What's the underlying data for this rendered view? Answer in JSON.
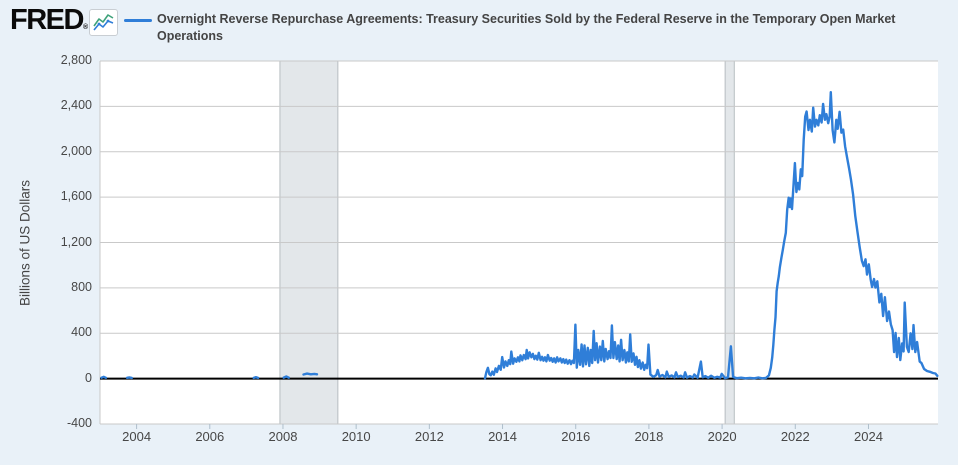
{
  "header": {
    "logo_text": "FRED",
    "registered_mark": "®",
    "series_title": "Overnight Reverse Repurchase Agreements: Treasury Securities Sold by the Federal Reserve in the Temporary Open Market Operations"
  },
  "colors": {
    "line": "#2f7ed8",
    "background": "#e9f1f8",
    "plot_bg": "#ffffff",
    "grid": "#c9c9c9",
    "zero_line": "#000000",
    "recession_fill": "#e3e7ea",
    "recession_edge": "#b7bdc1",
    "text": "#444444",
    "tick_mark": "#aebecb",
    "icon_green": "#3fa27a"
  },
  "chart_data": {
    "type": "line",
    "title": "Overnight Reverse Repurchase Agreements: Treasury Securities Sold by the Federal Reserve in the Temporary Open Market Operations",
    "xlabel": "",
    "ylabel": "Billions of US Dollars",
    "units": "Billions of US Dollars",
    "xlim": [
      2003.0,
      2025.9
    ],
    "ylim": [
      -400,
      2800
    ],
    "grid": "horizontal",
    "legend_position": "top",
    "yticks": [
      {
        "value": 2800,
        "label": "2,800"
      },
      {
        "value": 2400,
        "label": "2,400"
      },
      {
        "value": 2000,
        "label": "2,000"
      },
      {
        "value": 1600,
        "label": "1,600"
      },
      {
        "value": 1200,
        "label": "1,200"
      },
      {
        "value": 800,
        "label": "800"
      },
      {
        "value": 400,
        "label": "400"
      },
      {
        "value": 0,
        "label": "0"
      },
      {
        "value": -400,
        "label": "-400"
      }
    ],
    "xticks": [
      {
        "year": 2004,
        "label": "2004"
      },
      {
        "year": 2006,
        "label": "2006"
      },
      {
        "year": 2008,
        "label": "2008"
      },
      {
        "year": 2010,
        "label": "2010"
      },
      {
        "year": 2012,
        "label": "2012"
      },
      {
        "year": 2014,
        "label": "2014"
      },
      {
        "year": 2016,
        "label": "2016"
      },
      {
        "year": 2018,
        "label": "2018"
      },
      {
        "year": 2020,
        "label": "2020"
      },
      {
        "year": 2022,
        "label": "2022"
      },
      {
        "year": 2024,
        "label": "2024"
      }
    ],
    "recessions": [
      [
        2007.917,
        2009.5
      ],
      [
        2020.083,
        2020.333
      ]
    ],
    "early_segments": [
      [
        [
          2003.04,
          8
        ],
        [
          2003.1,
          16
        ],
        [
          2003.16,
          7
        ]
      ],
      [
        [
          2003.74,
          7
        ],
        [
          2003.8,
          11
        ],
        [
          2003.87,
          6
        ]
      ],
      [
        [
          2007.2,
          6
        ],
        [
          2007.26,
          13
        ],
        [
          2007.32,
          6
        ]
      ],
      [
        [
          2008.02,
          9
        ],
        [
          2008.09,
          19
        ],
        [
          2008.16,
          8
        ]
      ],
      [
        [
          2008.56,
          36
        ],
        [
          2008.66,
          44
        ],
        [
          2008.76,
          38
        ],
        [
          2008.86,
          42
        ],
        [
          2008.93,
          38
        ]
      ]
    ],
    "series": [
      {
        "name": "Overnight Reverse Repurchase Agreements: Treasury Securities Sold by the Federal Reserve in the Temporary Open Market Operations",
        "color": "#2f7ed8",
        "data": [
          [
            2013.52,
            3
          ],
          [
            2013.56,
            58
          ],
          [
            2013.6,
            95
          ],
          [
            2013.64,
            38
          ],
          [
            2013.68,
            30
          ],
          [
            2013.72,
            62
          ],
          [
            2013.76,
            34
          ],
          [
            2013.81,
            90
          ],
          [
            2013.85,
            58
          ],
          [
            2013.9,
            112
          ],
          [
            2013.95,
            78
          ],
          [
            2013.99,
            190
          ],
          [
            2014.04,
            98
          ],
          [
            2014.08,
            152
          ],
          [
            2014.13,
            112
          ],
          [
            2014.17,
            162
          ],
          [
            2014.21,
            128
          ],
          [
            2014.24,
            238
          ],
          [
            2014.29,
            132
          ],
          [
            2014.33,
            178
          ],
          [
            2014.38,
            148
          ],
          [
            2014.42,
            188
          ],
          [
            2014.46,
            152
          ],
          [
            2014.49,
            205
          ],
          [
            2014.54,
            162
          ],
          [
            2014.58,
            208
          ],
          [
            2014.63,
            172
          ],
          [
            2014.66,
            252
          ],
          [
            2014.7,
            178
          ],
          [
            2014.74,
            232
          ],
          [
            2014.79,
            188
          ],
          [
            2014.83,
            218
          ],
          [
            2014.87,
            172
          ],
          [
            2014.91,
            202
          ],
          [
            2014.95,
            168
          ],
          [
            2014.99,
            228
          ],
          [
            2015.04,
            162
          ],
          [
            2015.08,
            192
          ],
          [
            2015.12,
            158
          ],
          [
            2015.16,
            188
          ],
          [
            2015.2,
            152
          ],
          [
            2015.24,
            208
          ],
          [
            2015.29,
            158
          ],
          [
            2015.33,
            182
          ],
          [
            2015.37,
            148
          ],
          [
            2015.41,
            178
          ],
          [
            2015.45,
            142
          ],
          [
            2015.49,
            188
          ],
          [
            2015.53,
            152
          ],
          [
            2015.58,
            178
          ],
          [
            2015.62,
            142
          ],
          [
            2015.66,
            172
          ],
          [
            2015.7,
            138
          ],
          [
            2015.74,
            168
          ],
          [
            2015.78,
            132
          ],
          [
            2015.83,
            162
          ],
          [
            2015.87,
            128
          ],
          [
            2015.91,
            158
          ],
          [
            2015.95,
            138
          ],
          [
            2015.99,
            475
          ],
          [
            2016.03,
            96
          ],
          [
            2016.07,
            252
          ],
          [
            2016.12,
            122
          ],
          [
            2016.16,
            302
          ],
          [
            2016.2,
            108
          ],
          [
            2016.24,
            292
          ],
          [
            2016.28,
            126
          ],
          [
            2016.33,
            272
          ],
          [
            2016.37,
            112
          ],
          [
            2016.41,
            252
          ],
          [
            2016.45,
            138
          ],
          [
            2016.49,
            420
          ],
          [
            2016.53,
            162
          ],
          [
            2016.57,
            312
          ],
          [
            2016.61,
            142
          ],
          [
            2016.66,
            282
          ],
          [
            2016.7,
            162
          ],
          [
            2016.74,
            332
          ],
          [
            2016.78,
            152
          ],
          [
            2016.82,
            262
          ],
          [
            2016.87,
            172
          ],
          [
            2016.91,
            242
          ],
          [
            2016.95,
            182
          ],
          [
            2016.99,
            468
          ],
          [
            2017.03,
            182
          ],
          [
            2017.07,
            322
          ],
          [
            2017.12,
            172
          ],
          [
            2017.16,
            292
          ],
          [
            2017.2,
            152
          ],
          [
            2017.24,
            342
          ],
          [
            2017.28,
            162
          ],
          [
            2017.33,
            252
          ],
          [
            2017.37,
            142
          ],
          [
            2017.41,
            232
          ],
          [
            2017.45,
            152
          ],
          [
            2017.49,
            390
          ],
          [
            2017.53,
            148
          ],
          [
            2017.58,
            222
          ],
          [
            2017.62,
            122
          ],
          [
            2017.66,
            192
          ],
          [
            2017.7,
            102
          ],
          [
            2017.74,
            162
          ],
          [
            2017.78,
            88
          ],
          [
            2017.83,
            142
          ],
          [
            2017.87,
            78
          ],
          [
            2017.91,
            122
          ],
          [
            2017.95,
            92
          ],
          [
            2017.99,
            300
          ],
          [
            2018.04,
            36
          ],
          [
            2018.12,
            16
          ],
          [
            2018.2,
            30
          ],
          [
            2018.24,
            76
          ],
          [
            2018.29,
            18
          ],
          [
            2018.37,
            32
          ],
          [
            2018.45,
            12
          ],
          [
            2018.49,
            62
          ],
          [
            2018.54,
            16
          ],
          [
            2018.62,
            28
          ],
          [
            2018.7,
            11
          ],
          [
            2018.74,
            56
          ],
          [
            2018.79,
            15
          ],
          [
            2018.87,
            26
          ],
          [
            2018.95,
            10
          ],
          [
            2018.99,
            56
          ],
          [
            2019.04,
            9
          ],
          [
            2019.12,
            22
          ],
          [
            2019.2,
            10
          ],
          [
            2019.24,
            36
          ],
          [
            2019.33,
            8
          ],
          [
            2019.42,
            150
          ],
          [
            2019.47,
            12
          ],
          [
            2019.54,
            22
          ],
          [
            2019.62,
            8
          ],
          [
            2019.7,
            26
          ],
          [
            2019.79,
            7
          ],
          [
            2019.87,
            16
          ],
          [
            2019.95,
            9
          ],
          [
            2019.99,
            42
          ],
          [
            2020.08,
            5
          ],
          [
            2020.16,
            12
          ],
          [
            2020.24,
            285
          ],
          [
            2020.3,
            14
          ],
          [
            2020.4,
            4
          ],
          [
            2020.52,
            8
          ],
          [
            2020.64,
            3
          ],
          [
            2020.76,
            6
          ],
          [
            2020.88,
            3
          ],
          [
            2020.99,
            10
          ],
          [
            2021.1,
            3
          ],
          [
            2021.2,
            6
          ],
          [
            2021.28,
            28
          ],
          [
            2021.33,
            95
          ],
          [
            2021.37,
            185
          ],
          [
            2021.4,
            295
          ],
          [
            2021.43,
            430
          ],
          [
            2021.46,
            540
          ],
          [
            2021.49,
            770
          ],
          [
            2021.52,
            845
          ],
          [
            2021.55,
            905
          ],
          [
            2021.58,
            985
          ],
          [
            2021.62,
            1065
          ],
          [
            2021.66,
            1135
          ],
          [
            2021.7,
            1215
          ],
          [
            2021.74,
            1285
          ],
          [
            2021.78,
            1490
          ],
          [
            2021.82,
            1595
          ],
          [
            2021.85,
            1512
          ],
          [
            2021.88,
            1588
          ],
          [
            2021.91,
            1495
          ],
          [
            2021.95,
            1705
          ],
          [
            2021.99,
            1900
          ],
          [
            2022.03,
            1645
          ],
          [
            2022.07,
            1725
          ],
          [
            2022.11,
            1668
          ],
          [
            2022.15,
            1845
          ],
          [
            2022.19,
            1785
          ],
          [
            2022.23,
            2105
          ],
          [
            2022.27,
            2310
          ],
          [
            2022.31,
            2355
          ],
          [
            2022.36,
            2192
          ],
          [
            2022.4,
            2282
          ],
          [
            2022.45,
            2178
          ],
          [
            2022.49,
            2388
          ],
          [
            2022.54,
            2222
          ],
          [
            2022.58,
            2282
          ],
          [
            2022.63,
            2232
          ],
          [
            2022.67,
            2322
          ],
          [
            2022.72,
            2258
          ],
          [
            2022.76,
            2422
          ],
          [
            2022.81,
            2282
          ],
          [
            2022.85,
            2332
          ],
          [
            2022.9,
            2252
          ],
          [
            2022.94,
            2312
          ],
          [
            2022.97,
            2525
          ],
          [
            2023.02,
            2192
          ],
          [
            2023.07,
            2082
          ],
          [
            2023.12,
            2282
          ],
          [
            2023.16,
            2202
          ],
          [
            2023.21,
            2352
          ],
          [
            2023.26,
            2168
          ],
          [
            2023.31,
            2195
          ],
          [
            2023.36,
            2048
          ],
          [
            2023.41,
            1958
          ],
          [
            2023.47,
            1852
          ],
          [
            2023.52,
            1758
          ],
          [
            2023.58,
            1622
          ],
          [
            2023.64,
            1432
          ],
          [
            2023.7,
            1292
          ],
          [
            2023.76,
            1158
          ],
          [
            2023.82,
            1038
          ],
          [
            2023.87,
            992
          ],
          [
            2023.92,
            1052
          ],
          [
            2023.96,
            918
          ],
          [
            2024.01,
            1008
          ],
          [
            2024.06,
            872
          ],
          [
            2024.1,
            808
          ],
          [
            2024.15,
            878
          ],
          [
            2024.19,
            802
          ],
          [
            2024.24,
            858
          ],
          [
            2024.3,
            672
          ],
          [
            2024.35,
            748
          ],
          [
            2024.4,
            552
          ],
          [
            2024.45,
            718
          ],
          [
            2024.51,
            508
          ],
          [
            2024.56,
            592
          ],
          [
            2024.61,
            480
          ],
          [
            2024.66,
            428
          ],
          [
            2024.7,
            234
          ],
          [
            2024.74,
            402
          ],
          [
            2024.78,
            190
          ],
          [
            2024.83,
            358
          ],
          [
            2024.87,
            164
          ],
          [
            2024.92,
            310
          ],
          [
            2024.96,
            240
          ],
          [
            2024.99,
            670
          ],
          [
            2025.05,
            280
          ],
          [
            2025.1,
            235
          ],
          [
            2025.15,
            400
          ],
          [
            2025.2,
            260
          ],
          [
            2025.23,
            472
          ],
          [
            2025.28,
            234
          ],
          [
            2025.33,
            323
          ],
          [
            2025.4,
            150
          ],
          [
            2025.45,
            137
          ],
          [
            2025.52,
            85
          ],
          [
            2025.6,
            67
          ],
          [
            2025.68,
            60
          ],
          [
            2025.76,
            50
          ],
          [
            2025.83,
            45
          ],
          [
            2025.88,
            25
          ]
        ]
      }
    ]
  }
}
